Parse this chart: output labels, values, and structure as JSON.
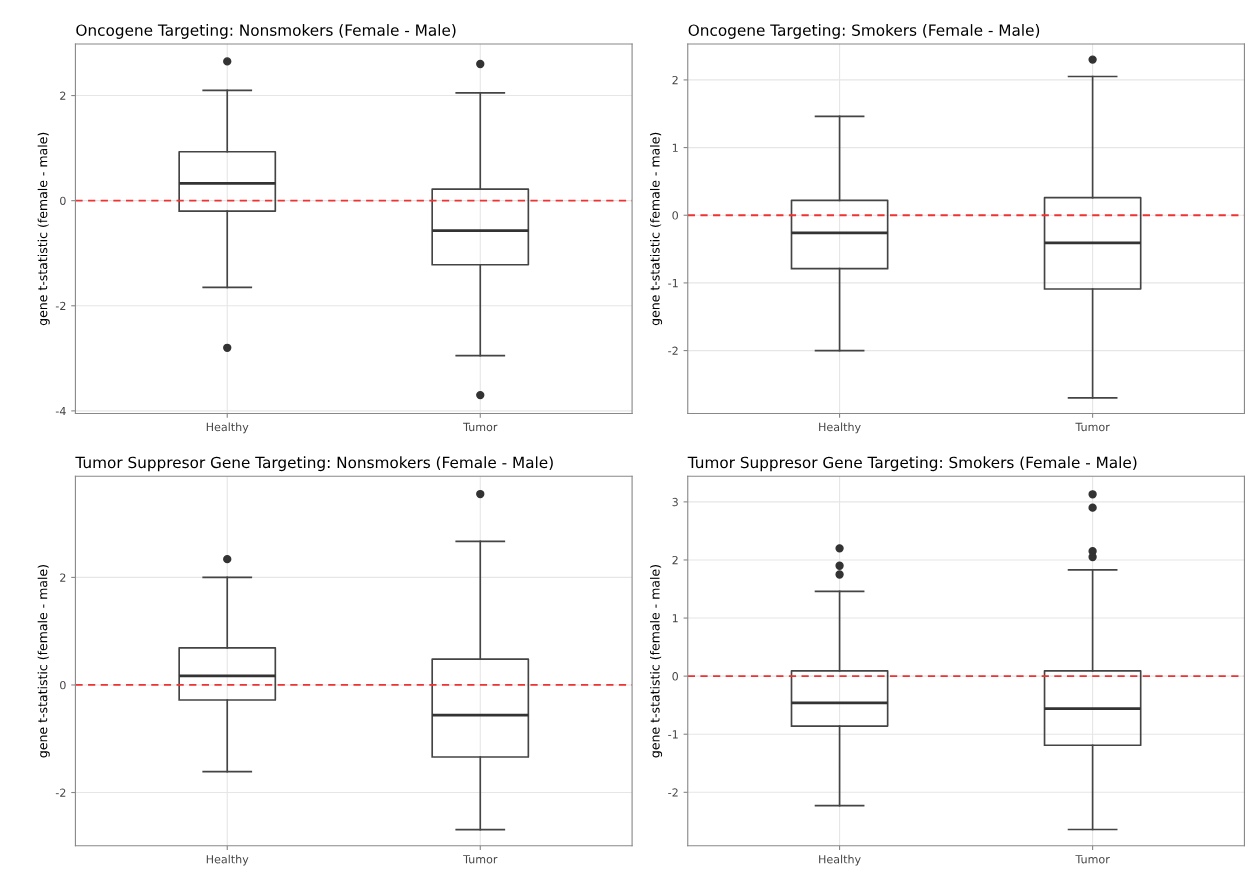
{
  "chart_data": [
    {
      "type": "box",
      "title": "Oncogene Targeting: Nonsmokers (Female - Male)",
      "ylabel": "gene t-statistic (female - male)",
      "categories": [
        "Healthy",
        "Tumor"
      ],
      "boxes": [
        {
          "low": -1.65,
          "q1": -0.2,
          "median": 0.33,
          "q3": 0.93,
          "high": 2.1,
          "outliers": [
            2.65,
            -2.8
          ]
        },
        {
          "low": -2.95,
          "q1": -1.22,
          "median": -0.57,
          "q3": 0.22,
          "high": 2.05,
          "outliers": [
            2.6,
            -3.7
          ]
        }
      ],
      "ylim": [
        -4.05,
        2.98
      ],
      "yticks": [
        -4,
        -2,
        0,
        2
      ],
      "grid": true,
      "ref_lines": [
        {
          "axis": "y",
          "value": 0,
          "color": "#ee3333",
          "line_style": "dashed"
        }
      ]
    },
    {
      "type": "box",
      "title": "Oncogene Targeting: Smokers (Female - Male)",
      "ylabel": "gene t-statistic (female - male)",
      "categories": [
        "Healthy",
        "Tumor"
      ],
      "boxes": [
        {
          "low": -2.0,
          "q1": -0.79,
          "median": -0.26,
          "q3": 0.22,
          "high": 1.46
        },
        {
          "low": -2.7,
          "q1": -1.09,
          "median": -0.41,
          "q3": 0.26,
          "high": 2.05,
          "outliers": [
            2.3
          ]
        }
      ],
      "ylim": [
        -2.93,
        2.53
      ],
      "yticks": [
        -2,
        -1,
        0,
        1,
        2
      ],
      "grid": true,
      "ref_lines": [
        {
          "axis": "y",
          "value": 0,
          "color": "#ee3333",
          "line_style": "dashed"
        }
      ]
    },
    {
      "type": "box",
      "title": "Tumor Suppresor Gene Targeting: Nonsmokers (Female - Male)",
      "ylabel": "gene t-statistic (female - male)",
      "categories": [
        "Healthy",
        "Tumor"
      ],
      "boxes": [
        {
          "low": -1.61,
          "q1": -0.28,
          "median": 0.17,
          "q3": 0.69,
          "high": 2.0,
          "outliers": [
            2.34
          ]
        },
        {
          "low": -2.69,
          "q1": -1.34,
          "median": -0.56,
          "q3": 0.48,
          "high": 2.67,
          "outliers": [
            3.55
          ]
        }
      ],
      "ylim": [
        -2.99,
        3.88
      ],
      "yticks": [
        -2,
        0,
        2
      ],
      "grid": true,
      "ref_lines": [
        {
          "axis": "y",
          "value": 0,
          "color": "#ee3333",
          "line_style": "dashed"
        }
      ]
    },
    {
      "type": "box",
      "title": "Tumor Suppresor Gene Targeting: Smokers (Female - Male)",
      "ylabel": "gene t-statistic (female - male)",
      "categories": [
        "Healthy",
        "Tumor"
      ],
      "boxes": [
        {
          "low": -2.23,
          "q1": -0.86,
          "median": -0.46,
          "q3": 0.09,
          "high": 1.46,
          "outliers": [
            2.2,
            1.9,
            1.75
          ]
        },
        {
          "low": -2.64,
          "q1": -1.19,
          "median": -0.56,
          "q3": 0.09,
          "high": 1.83,
          "outliers": [
            3.13,
            2.9,
            2.15,
            2.05
          ]
        }
      ],
      "ylim": [
        -2.92,
        3.44
      ],
      "yticks": [
        -2,
        -1,
        0,
        1,
        2,
        3
      ],
      "grid": true,
      "ref_lines": [
        {
          "axis": "y",
          "value": 0,
          "color": "#ee3333",
          "line_style": "dashed"
        }
      ]
    }
  ]
}
